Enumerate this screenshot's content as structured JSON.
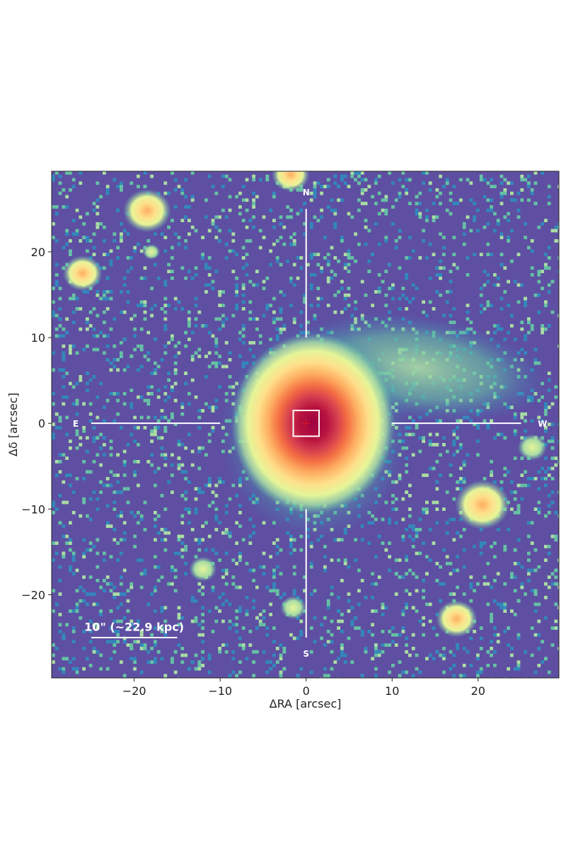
{
  "chart_data": {
    "type": "image",
    "xlabel": "ΔRA [arcsec]",
    "ylabel": "Δδ [arcsec]",
    "xlim": [
      -29.6,
      29.4
    ],
    "ylim": [
      -29.7,
      29.4
    ],
    "xticks": [
      {
        "value": -20,
        "label": "−20"
      },
      {
        "value": -10,
        "label": "−10"
      },
      0,
      10,
      20
    ],
    "yticks": [
      {
        "value": -20,
        "label": "−20"
      },
      {
        "value": -10,
        "label": "−10"
      },
      0,
      10,
      20
    ],
    "annotations": [
      "N",
      "S",
      "E",
      "W",
      "10\" (~22.9 kpc)"
    ]
  }
}
